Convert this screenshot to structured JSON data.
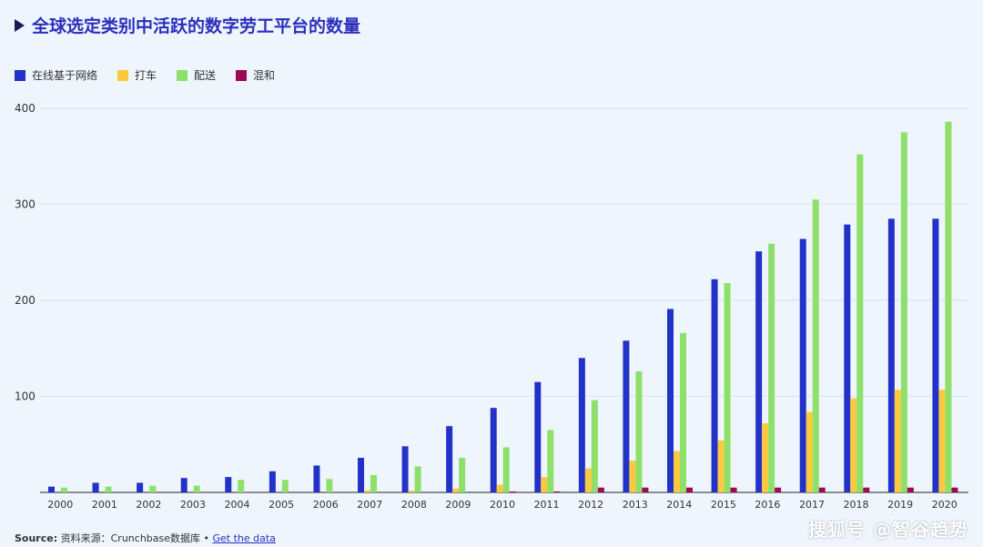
{
  "title": "全球选定类别中活跃的数字劳工平台的数量",
  "footer": {
    "source_label": "Source:",
    "source_text": " 资料来源：Crunchbase数据库 • ",
    "link_text": "Get the data"
  },
  "watermark": "搜狐号 @智谷趋势",
  "colors": {
    "online": "#2232c8",
    "taxi": "#fbc93d",
    "delivery": "#8ee06a",
    "hybrid": "#9c0a52",
    "grid": "#d6e4f2",
    "axis": "#222222"
  },
  "chart_data": {
    "type": "bar",
    "title": "全球选定类别中活跃的数字劳工平台的数量",
    "xlabel": "",
    "ylabel": "",
    "ylim": [
      0,
      400
    ],
    "yticks": [
      100,
      200,
      300,
      400
    ],
    "grid": true,
    "legend_position": "top-left",
    "categories": [
      "2000",
      "2001",
      "2002",
      "2003",
      "2004",
      "2005",
      "2006",
      "2007",
      "2008",
      "2009",
      "2010",
      "2011",
      "2012",
      "2013",
      "2014",
      "2015",
      "2016",
      "2017",
      "2018",
      "2019",
      "2020"
    ],
    "series": [
      {
        "name": "在线基于网络",
        "color": "#2232c8",
        "values": [
          6,
          10,
          10,
          15,
          16,
          22,
          28,
          36,
          48,
          69,
          88,
          115,
          140,
          158,
          191,
          222,
          251,
          264,
          279,
          285,
          285
        ]
      },
      {
        "name": "打车",
        "color": "#fbc93d",
        "values": [
          0,
          0,
          0,
          0,
          0,
          0,
          0,
          2,
          2,
          4,
          8,
          16,
          25,
          33,
          43,
          54,
          72,
          84,
          98,
          107,
          107
        ]
      },
      {
        "name": "配送",
        "color": "#8ee06a",
        "values": [
          5,
          6,
          7,
          7,
          13,
          13,
          14,
          18,
          27,
          36,
          47,
          65,
          96,
          126,
          166,
          218,
          259,
          305,
          352,
          375,
          386
        ]
      },
      {
        "name": "混和",
        "color": "#9c0a52",
        "values": [
          0,
          0,
          0,
          0,
          0,
          0,
          0,
          0,
          0,
          0,
          1,
          1,
          5,
          5,
          5,
          5,
          5,
          5,
          5,
          5,
          5
        ]
      }
    ]
  }
}
